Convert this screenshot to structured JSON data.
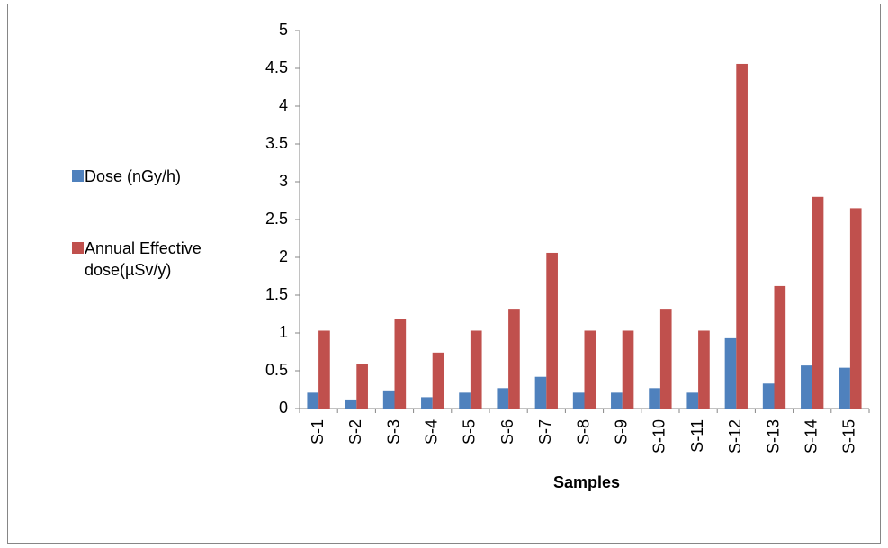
{
  "chart_data": {
    "type": "bar",
    "x_label": "Samples",
    "categories": [
      "S-1",
      "S-2",
      "S-3",
      "S-4",
      "S-5",
      "S-6",
      "S-7",
      "S-8",
      "S-9",
      "S-10",
      "S-11",
      "S-12",
      "S-13",
      "S-14",
      "S-15"
    ],
    "series": [
      {
        "name": "Dose (nGy/h)",
        "color": "#4f81bd",
        "values": [
          0.21,
          0.12,
          0.24,
          0.15,
          0.21,
          0.27,
          0.42,
          0.21,
          0.21,
          0.27,
          0.21,
          0.93,
          0.33,
          0.57,
          0.54
        ]
      },
      {
        "name": "Annual Effective dose(µSv/y)",
        "color": "#c0504d",
        "values": [
          1.03,
          0.59,
          1.18,
          0.74,
          1.03,
          1.32,
          2.06,
          1.03,
          1.03,
          1.32,
          1.03,
          4.56,
          1.62,
          2.8,
          2.65
        ]
      }
    ],
    "ylim": [
      0,
      5
    ],
    "yticks": [
      0,
      0.5,
      1,
      1.5,
      2,
      2.5,
      3,
      3.5,
      4,
      4.5,
      5
    ],
    "grid": false,
    "legend": "left"
  }
}
